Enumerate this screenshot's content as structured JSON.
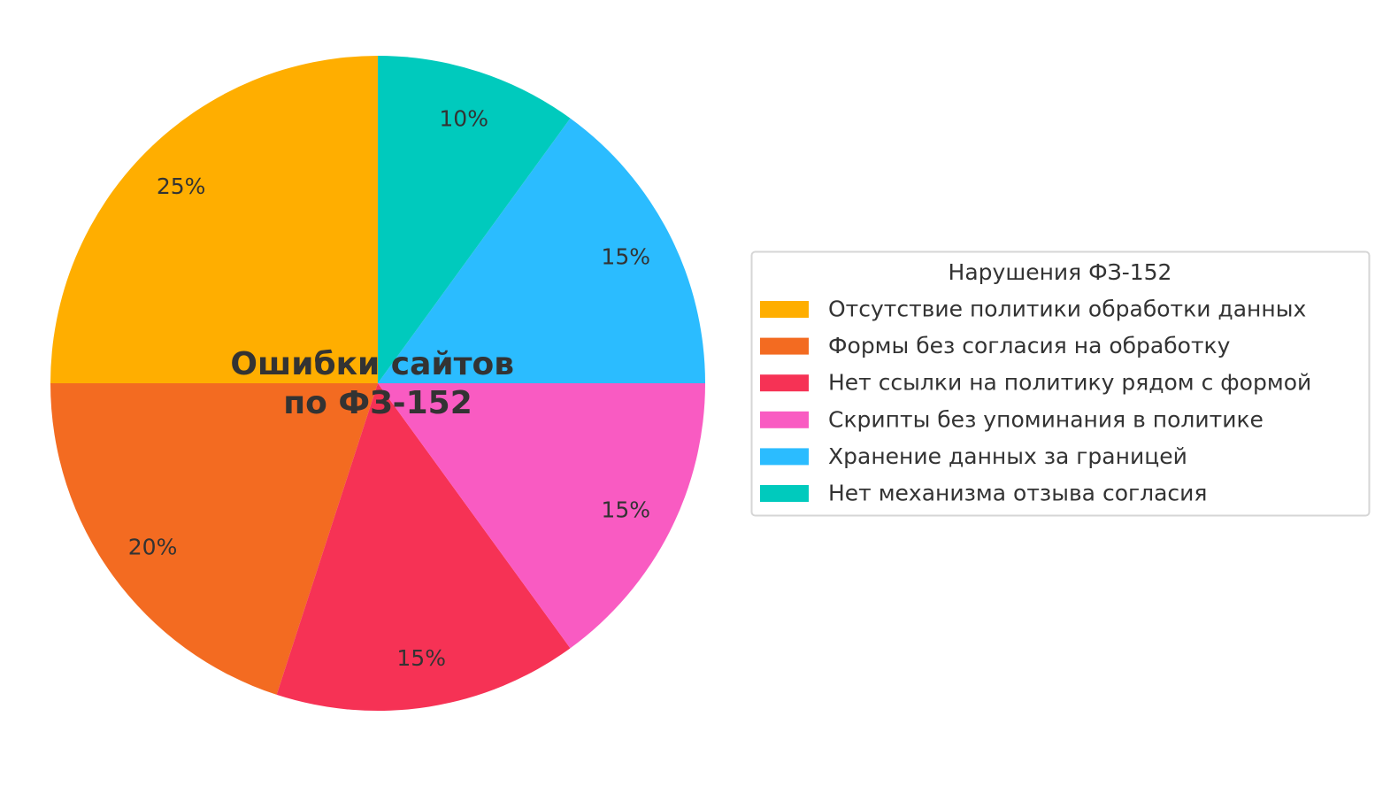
{
  "chart_data": {
    "type": "pie",
    "title": "Ошибки сайтов\nпо ФЗ-152",
    "title_lines": [
      "Ошибки сайтов",
      "по ФЗ-152"
    ],
    "start_angle_deg": 90,
    "direction": "counterclockwise",
    "legend": {
      "title": "Нарушения ФЗ-152",
      "placement": "right"
    },
    "slices": [
      {
        "label": "Отсутствие политики обработки данных",
        "value": 25,
        "display": "25%",
        "color": "#FFAE00"
      },
      {
        "label": "Формы без согласия на обработку",
        "value": 20,
        "display": "20%",
        "color": "#F36B21"
      },
      {
        "label": "Нет ссылки на политику рядом с формой",
        "value": 15,
        "display": "15%",
        "color": "#F63255"
      },
      {
        "label": "Скрипты без упоминания в политике",
        "value": 15,
        "display": "15%",
        "color": "#F95BC2"
      },
      {
        "label": "Хранение данных за границей",
        "value": 15,
        "display": "15%",
        "color": "#2BBCFF"
      },
      {
        "label": "Нет механизма отзыва согласия",
        "value": 10,
        "display": "10%",
        "color": "#00CABD"
      }
    ]
  }
}
